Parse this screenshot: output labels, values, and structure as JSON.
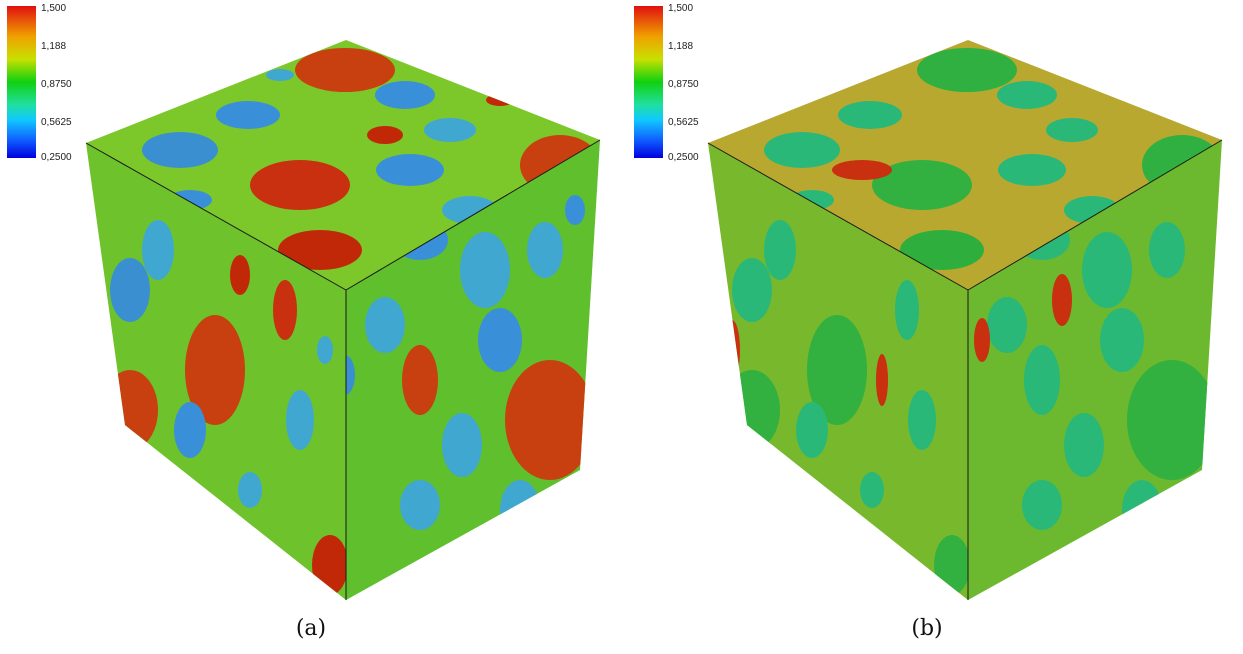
{
  "colorbar": {
    "ticks": [
      "1,500",
      "1,188",
      "0,8750",
      "0,5625",
      "0,2500"
    ],
    "colors": [
      "#e01010",
      "#f0a000",
      "#10d010",
      "#10c8ff",
      "#0000e0"
    ]
  },
  "panels": [
    {
      "caption": "(a)",
      "background": "#4fc62a",
      "matrix_tint": "#8ccf2a"
    },
    {
      "caption": "(b)",
      "background": "#3cbf2e",
      "matrix_tint": "#c8a030"
    }
  ]
}
